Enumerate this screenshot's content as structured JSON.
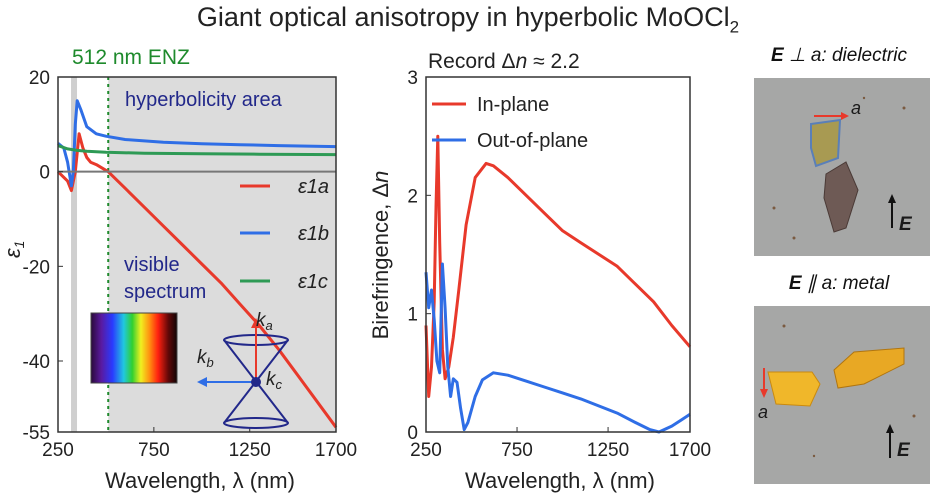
{
  "figure_title": "Giant optical anisotropy in hyperbolic MoOCl",
  "figure_title_subscript": "2",
  "left_panel": {
    "enz_label": "512 nm ENZ",
    "hyperbolicity_label": "hyperbolicity area",
    "visible_label_line1": "visible",
    "visible_label_line2": "spectrum",
    "colors": {
      "in_plane_a": "#e8392b",
      "b": "#2f6ee6",
      "c": "#2e9a55",
      "enz": "#1e8a2c",
      "annotation": "#22288a",
      "shade": "#dcdcdc"
    }
  },
  "right_panel": {
    "record_label": "Record Δn ≈ 2.2"
  },
  "photos": {
    "perp_title_E": "E",
    "perp_title_rest": " ⊥ a: dielectric",
    "par_title_E": "E",
    "par_title_rest": " ∥ a: metal",
    "axis_a": "a",
    "field_E": "E"
  },
  "chart_data": [
    {
      "type": "line",
      "xlabel": "Wavelength, λ (nm)",
      "ylabel": "ε1",
      "xlim": [
        250,
        1700
      ],
      "ylim": [
        -55,
        20
      ],
      "xticks": [
        250,
        750,
        1250,
        1700
      ],
      "yticks": [
        20,
        0,
        -20,
        -40,
        -55
      ],
      "legend": [
        "ε1a",
        "ε1b",
        "ε1c"
      ],
      "series": [
        {
          "name": "ε1a",
          "color": "#e8392b",
          "x": [
            250,
            300,
            320,
            340,
            360,
            380,
            400,
            420,
            450,
            512,
            600,
            700,
            800,
            900,
            1000,
            1100,
            1200,
            1300,
            1400,
            1500,
            1600,
            1700
          ],
          "y": [
            0,
            -2,
            -4,
            0,
            8,
            5,
            3,
            2,
            1.5,
            0,
            -3.5,
            -7.5,
            -11.5,
            -15.5,
            -19.5,
            -23.5,
            -28,
            -32.5,
            -37.5,
            -43,
            -48.5,
            -54
          ]
        },
        {
          "name": "ε1b",
          "color": "#2f6ee6",
          "x": [
            250,
            280,
            300,
            320,
            330,
            340,
            350,
            370,
            400,
            450,
            500,
            600,
            800,
            1000,
            1200,
            1400,
            1700
          ],
          "y": [
            6,
            5,
            2,
            -3,
            0,
            10,
            15,
            13,
            9.5,
            8,
            7.5,
            6.8,
            6.2,
            5.9,
            5.7,
            5.5,
            5.3
          ]
        },
        {
          "name": "ε1c",
          "color": "#2e9a55",
          "x": [
            250,
            300,
            350,
            400,
            500,
            700,
            1000,
            1300,
            1700
          ],
          "y": [
            5.5,
            4.8,
            4.5,
            4.3,
            4.1,
            3.9,
            3.8,
            3.7,
            3.6
          ]
        }
      ]
    },
    {
      "type": "line",
      "xlabel": "Wavelength, λ (nm)",
      "ylabel": "Birefringence, Δn",
      "xlim": [
        250,
        1700
      ],
      "ylim": [
        0,
        3
      ],
      "xticks": [
        250,
        750,
        1250,
        1700
      ],
      "yticks": [
        0,
        1,
        2,
        3
      ],
      "legend": [
        "In-plane",
        "Out-of-plane"
      ],
      "series": [
        {
          "name": "In-plane",
          "color": "#e8392b",
          "x": [
            250,
            265,
            280,
            295,
            305,
            315,
            325,
            340,
            355,
            375,
            400,
            430,
            470,
            520,
            580,
            620,
            700,
            800,
            900,
            1000,
            1100,
            1200,
            1300,
            1400,
            1500,
            1600,
            1700
          ],
          "y": [
            0.9,
            0.3,
            0.55,
            1.1,
            1.9,
            2.5,
            1.6,
            0.7,
            0.45,
            0.55,
            0.8,
            1.2,
            1.75,
            2.15,
            2.27,
            2.25,
            2.15,
            2.0,
            1.85,
            1.7,
            1.6,
            1.5,
            1.4,
            1.25,
            1.1,
            0.9,
            0.72
          ]
        },
        {
          "name": "Out-of-plane",
          "color": "#2f6ee6",
          "x": [
            250,
            265,
            280,
            295,
            310,
            325,
            340,
            355,
            370,
            385,
            400,
            420,
            440,
            460,
            480,
            520,
            560,
            620,
            700,
            800,
            900,
            1000,
            1100,
            1200,
            1300,
            1400,
            1480,
            1530,
            1600,
            1650,
            1700
          ],
          "y": [
            1.35,
            1.05,
            1.2,
            0.95,
            0.6,
            0.5,
            1.42,
            1.05,
            0.55,
            0.3,
            0.45,
            0.42,
            0.2,
            0.02,
            0.08,
            0.3,
            0.44,
            0.5,
            0.48,
            0.43,
            0.38,
            0.33,
            0.28,
            0.22,
            0.16,
            0.08,
            0.02,
            0.0,
            0.05,
            0.1,
            0.15
          ]
        }
      ]
    }
  ]
}
